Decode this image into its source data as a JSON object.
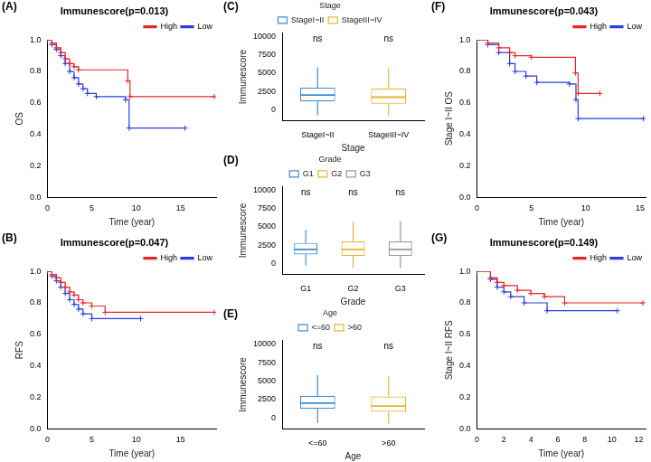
{
  "chart_data": [
    {
      "panel": "(A)",
      "type": "line",
      "title": "Immunescore(p=0.013)",
      "x_label": "Time (year)",
      "y_label": "OS",
      "xlim": [
        0,
        19
      ],
      "xticks": [
        0,
        5,
        10,
        15
      ],
      "ylim": [
        0,
        1
      ],
      "yticks": [
        {
          "value": 0,
          "label": "0.0"
        },
        {
          "value": 0.2,
          "label": "0.2"
        },
        {
          "value": 0.4,
          "label": "0.4"
        },
        {
          "value": 0.6,
          "label": "0.6"
        },
        {
          "value": 0.8,
          "label": "0.8"
        },
        {
          "value": 1,
          "label": "1.0"
        }
      ],
      "grid": false,
      "legend": "top-right",
      "marker": "+",
      "line_style": "step",
      "series": [
        {
          "name": "High",
          "color": "#e8262a",
          "x": [
            0,
            0.5,
            1,
            1.5,
            2,
            2.5,
            3,
            3.5,
            9.05,
            9.3,
            18.8
          ],
          "values": [
            1,
            0.98,
            0.95,
            0.92,
            0.88,
            0.85,
            0.83,
            0.81,
            0.74,
            0.64,
            0.64
          ]
        },
        {
          "name": "Low",
          "color": "#2a3ee0",
          "x": [
            0,
            0.5,
            1,
            1.5,
            2,
            2.5,
            3,
            3.5,
            4,
            4.5,
            5.5,
            8.8,
            9.2,
            15.5
          ],
          "values": [
            1,
            0.97,
            0.94,
            0.9,
            0.85,
            0.8,
            0.76,
            0.72,
            0.69,
            0.66,
            0.64,
            0.62,
            0.44,
            0.44
          ]
        }
      ]
    },
    {
      "panel": "(B)",
      "type": "line",
      "title": "Immunescore(p=0.047)",
      "x_label": "Time (year)",
      "y_label": "RFS",
      "xlim": [
        0,
        19
      ],
      "xticks": [
        0,
        5,
        10,
        15
      ],
      "ylim": [
        0,
        1
      ],
      "yticks": [
        {
          "value": 0,
          "label": "0.0"
        },
        {
          "value": 0.2,
          "label": "0.2"
        },
        {
          "value": 0.4,
          "label": "0.4"
        },
        {
          "value": 0.6,
          "label": "0.6"
        },
        {
          "value": 0.8,
          "label": "0.8"
        },
        {
          "value": 1,
          "label": "1.0"
        }
      ],
      "grid": false,
      "legend": "top-right",
      "marker": "+",
      "line_style": "step",
      "series": [
        {
          "name": "High",
          "color": "#e8262a",
          "x": [
            0,
            0.5,
            1,
            1.5,
            2,
            2.5,
            3,
            3.5,
            4,
            5,
            6.5,
            18.8
          ],
          "values": [
            1,
            0.98,
            0.96,
            0.93,
            0.9,
            0.87,
            0.85,
            0.82,
            0.8,
            0.78,
            0.74,
            0.74
          ]
        },
        {
          "name": "Low",
          "color": "#2a3ee0",
          "x": [
            0,
            0.5,
            1,
            1.5,
            2,
            2.5,
            3,
            3.5,
            4,
            5,
            10.5
          ],
          "values": [
            1,
            0.97,
            0.94,
            0.9,
            0.86,
            0.82,
            0.79,
            0.76,
            0.73,
            0.7,
            0.7
          ]
        }
      ]
    },
    {
      "panel": "(C)",
      "type": "box",
      "legend_title": "Stage",
      "x_label": "Stage",
      "y_label": "Immunescore",
      "categories": [
        "StageI~II",
        "StageIII~IV"
      ],
      "colors": [
        "#3d8fcf",
        "#e8b530"
      ],
      "stats": [
        {
          "min": -800,
          "q1": 1100,
          "median": 2000,
          "q3": 3000,
          "max": 5800
        },
        {
          "min": -800,
          "q1": 800,
          "median": 1700,
          "q3": 2900,
          "max": 5700
        }
      ],
      "annotations": [
        "ns",
        "ns"
      ],
      "ylim": [
        -1500,
        10500
      ],
      "yticks": [
        0,
        2500,
        5000,
        7500,
        10000
      ],
      "grid": false,
      "legend": "top"
    },
    {
      "panel": "(D)",
      "type": "box",
      "legend_title": "Grade",
      "x_label": "Grade",
      "y_label": "Immunescore",
      "categories": [
        "G1",
        "G2",
        "G3"
      ],
      "colors": [
        "#3d8fcf",
        "#e8b530",
        "#9a9a9a"
      ],
      "stats": [
        {
          "min": -300,
          "q1": 1200,
          "median": 1900,
          "q3": 2800,
          "max": 4600
        },
        {
          "min": -600,
          "q1": 1000,
          "median": 1900,
          "q3": 3000,
          "max": 5800
        },
        {
          "min": -700,
          "q1": 1000,
          "median": 1900,
          "q3": 3000,
          "max": 5800
        }
      ],
      "annotations": [
        "ns",
        "ns",
        "ns"
      ],
      "ylim": [
        -1500,
        10500
      ],
      "yticks": [
        0,
        2500,
        5000,
        7500,
        10000
      ],
      "grid": false,
      "legend": "top"
    },
    {
      "panel": "(E)",
      "type": "box",
      "legend_title": "Age",
      "x_label": "Age",
      "y_label": "Immunescore",
      "categories": [
        "<=60",
        ">60"
      ],
      "colors": [
        "#3d8fcf",
        "#e8b530"
      ],
      "stats": [
        {
          "min": -700,
          "q1": 1200,
          "median": 2000,
          "q3": 3000,
          "max": 5800
        },
        {
          "min": -800,
          "q1": 800,
          "median": 1600,
          "q3": 2900,
          "max": 5600
        }
      ],
      "annotations": [
        "ns",
        "ns"
      ],
      "ylim": [
        -1500,
        10500
      ],
      "yticks": [
        0,
        2500,
        5000,
        7500,
        10000
      ],
      "grid": false,
      "legend": "top"
    },
    {
      "panel": "(F)",
      "type": "line",
      "title": "Immunescore(p=0.043)",
      "x_label": "Time (year)",
      "y_label": "Stage I~II OS",
      "xlim": [
        0,
        15.5
      ],
      "xticks": [
        0,
        5,
        10,
        15
      ],
      "ylim": [
        0,
        1
      ],
      "yticks": [
        {
          "value": 0,
          "label": "0.0"
        },
        {
          "value": 0.2,
          "label": "0.2"
        },
        {
          "value": 0.4,
          "label": "0.4"
        },
        {
          "value": 0.6,
          "label": "0.6"
        },
        {
          "value": 0.8,
          "label": "0.8"
        },
        {
          "value": 1,
          "label": "1.0"
        }
      ],
      "grid": false,
      "legend": "top-right",
      "marker": "+",
      "line_style": "step",
      "series": [
        {
          "name": "High",
          "color": "#e8262a",
          "x": [
            0,
            1,
            2,
            3,
            3.5,
            5,
            9.05,
            9.3,
            11.3
          ],
          "values": [
            1,
            0.98,
            0.95,
            0.92,
            0.9,
            0.89,
            0.79,
            0.66,
            0.66
          ]
        },
        {
          "name": "Low",
          "color": "#2a3ee0",
          "x": [
            0,
            1,
            2,
            3,
            3.5,
            4.5,
            5.5,
            8.5,
            9.1,
            9.3,
            15.3
          ],
          "values": [
            1,
            0.97,
            0.92,
            0.85,
            0.8,
            0.77,
            0.73,
            0.72,
            0.62,
            0.5,
            0.5
          ]
        }
      ]
    },
    {
      "panel": "(G)",
      "type": "line",
      "title": "Immunescore(p=0.149)",
      "x_label": "Time (year)",
      "y_label": "Stage I~II RFS",
      "xlim": [
        0,
        12.5
      ],
      "xticks": [
        0,
        2,
        4,
        6,
        8,
        10,
        12
      ],
      "ylim": [
        0,
        1
      ],
      "yticks": [
        {
          "value": 0,
          "label": "0.0"
        },
        {
          "value": 0.2,
          "label": "0.2"
        },
        {
          "value": 0.4,
          "label": "0.4"
        },
        {
          "value": 0.6,
          "label": "0.6"
        },
        {
          "value": 0.8,
          "label": "0.8"
        },
        {
          "value": 1,
          "label": "1.0"
        }
      ],
      "grid": false,
      "legend": "top-right",
      "marker": "+",
      "line_style": "step",
      "series": [
        {
          "name": "High",
          "color": "#e8262a",
          "x": [
            0,
            1,
            1.5,
            2,
            3,
            4,
            5,
            6.5,
            12.3
          ],
          "values": [
            1,
            0.96,
            0.93,
            0.91,
            0.88,
            0.86,
            0.84,
            0.8,
            0.8
          ]
        },
        {
          "name": "Low",
          "color": "#2a3ee0",
          "x": [
            0,
            1,
            1.5,
            2,
            2.5,
            3.5,
            5.2,
            10.4
          ],
          "values": [
            1,
            0.95,
            0.9,
            0.87,
            0.84,
            0.8,
            0.75,
            0.75
          ]
        }
      ]
    }
  ]
}
